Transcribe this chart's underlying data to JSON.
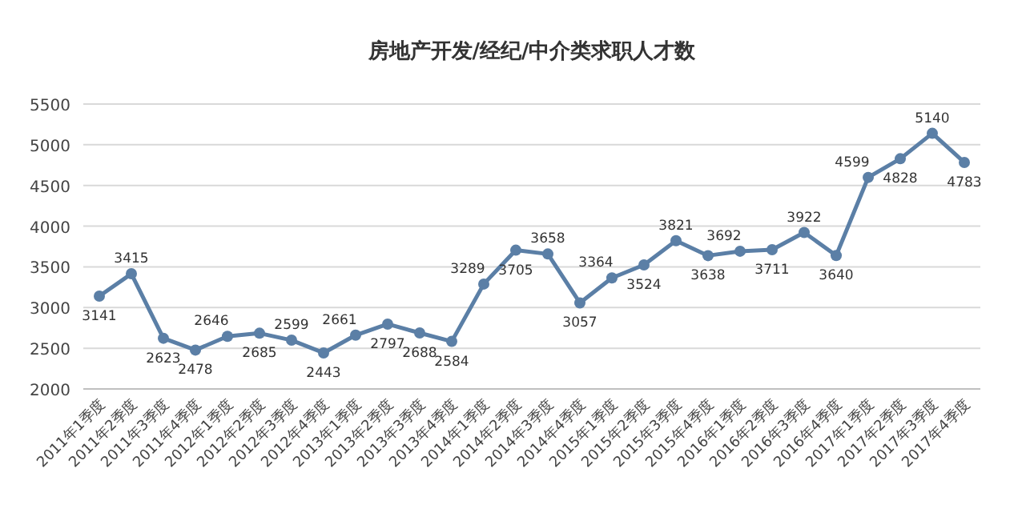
{
  "chart_data": {
    "type": "line",
    "title": "房地产开发/经纪/中介类求职人才数",
    "categories": [
      "2011年1季度",
      "2011年2季度",
      "2011年3季度",
      "2011年4季度",
      "2012年1季度",
      "2012年2季度",
      "2012年3季度",
      "2012年4季度",
      "2013年1季度",
      "2013年2季度",
      "2013年3季度",
      "2013年4季度",
      "2014年1季度",
      "2014年2季度",
      "2014年3季度",
      "2014年4季度",
      "2015年1季度",
      "2015年2季度",
      "2015年3季度",
      "2015年4季度",
      "2016年1季度",
      "2016年2季度",
      "2016年3季度",
      "2016年4季度",
      "2017年1季度",
      "2017年2季度",
      "2017年3季度",
      "2017年4季度"
    ],
    "series": [
      {
        "color": "#5b7fa6",
        "values": [
          3141,
          3415,
          2623,
          2478,
          2646,
          2685,
          2599,
          2443,
          2661,
          2797,
          2688,
          2584,
          3289,
          3705,
          3658,
          3057,
          3364,
          3524,
          3821,
          3638,
          3692,
          3711,
          3922,
          3640,
          4599,
          4828,
          5140,
          4783
        ]
      }
    ],
    "ylim": [
      2000,
      5500
    ],
    "yticks": [
      2000,
      2500,
      3000,
      3500,
      4000,
      4500,
      5000,
      5500
    ],
    "grid": "y",
    "marker": "circle",
    "line_style": "solid",
    "data_labels": true
  }
}
